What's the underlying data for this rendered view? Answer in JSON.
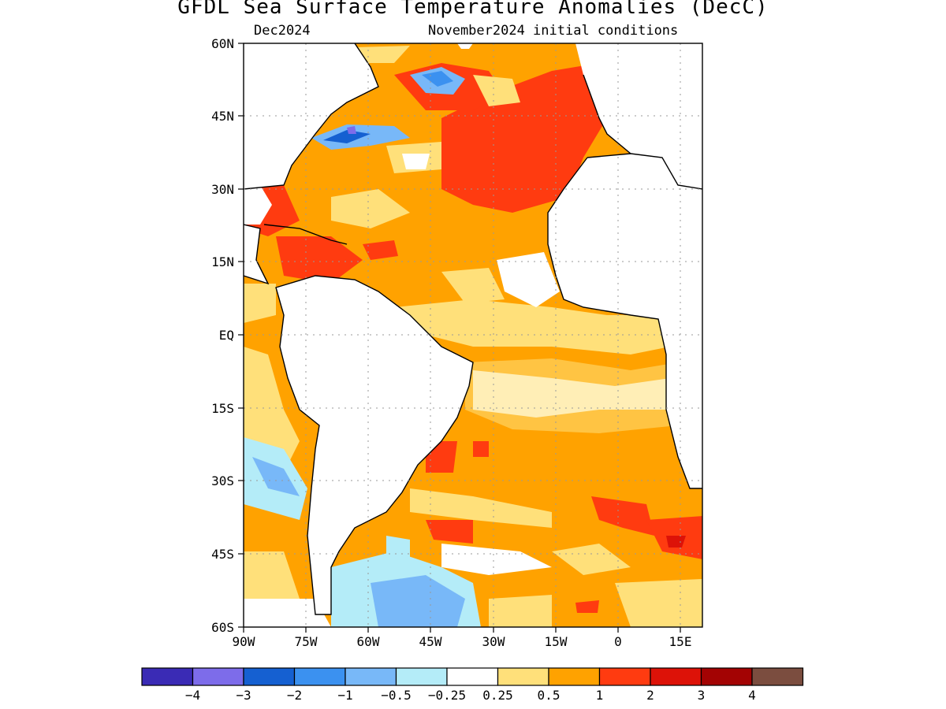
{
  "title": "GFDL Sea Surface Temperature Anomalies (DecC)",
  "subtitle_left": "Dec2024",
  "subtitle_right": "November2024 initial conditions",
  "map": {
    "lat_labels": [
      "60N",
      "45N",
      "30N",
      "15N",
      "EQ",
      "15S",
      "30S",
      "45S",
      "60S"
    ],
    "lon_labels": [
      "90W",
      "75W",
      "60W",
      "45W",
      "30W",
      "15W",
      "0",
      "15E"
    ],
    "lat_range": [
      -60,
      60
    ],
    "lon_range": [
      -90,
      20
    ],
    "grid": "dotted"
  },
  "colorbar": {
    "colors": [
      "#3a2bb5",
      "#7d6cea",
      "#1560d1",
      "#3b91f0",
      "#78b8f8",
      "#b4ecf8",
      "#ffffff",
      "#ffe07a",
      "#ffa200",
      "#ff3b10",
      "#dd1208",
      "#a30303",
      "#7b4d3f"
    ],
    "labels": [
      "−4",
      "−3",
      "−2",
      "−1",
      "−0.5",
      "−0.25",
      "0.25",
      "0.5",
      "1",
      "2",
      "3",
      "4"
    ]
  }
}
